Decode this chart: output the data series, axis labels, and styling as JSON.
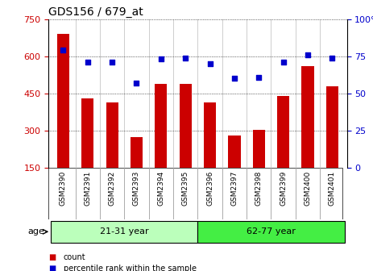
{
  "title": "GDS156 / 679_at",
  "categories": [
    "GSM2390",
    "GSM2391",
    "GSM2392",
    "GSM2393",
    "GSM2394",
    "GSM2395",
    "GSM2396",
    "GSM2397",
    "GSM2398",
    "GSM2399",
    "GSM2400",
    "GSM2401"
  ],
  "bar_values": [
    690,
    430,
    415,
    275,
    488,
    490,
    415,
    280,
    305,
    440,
    560,
    480
  ],
  "percentile_values": [
    79,
    71,
    71,
    57,
    73,
    74,
    70,
    60,
    61,
    71,
    76,
    74
  ],
  "bar_color": "#cc0000",
  "percentile_color": "#0000cc",
  "ylim_left": [
    150,
    750
  ],
  "ylim_right": [
    0,
    100
  ],
  "yticks_left": [
    150,
    300,
    450,
    600,
    750
  ],
  "yticks_right": [
    0,
    25,
    50,
    75,
    100
  ],
  "group1_label": "21-31 year",
  "group2_label": "62-77 year",
  "group_color1": "#bbffbb",
  "group_color2": "#44ee44",
  "age_label": "age",
  "background_color": "#ffffff",
  "tick_bg_color": "#dddddd",
  "legend_count_label": "count",
  "legend_percentile_label": "percentile rank within the sample"
}
